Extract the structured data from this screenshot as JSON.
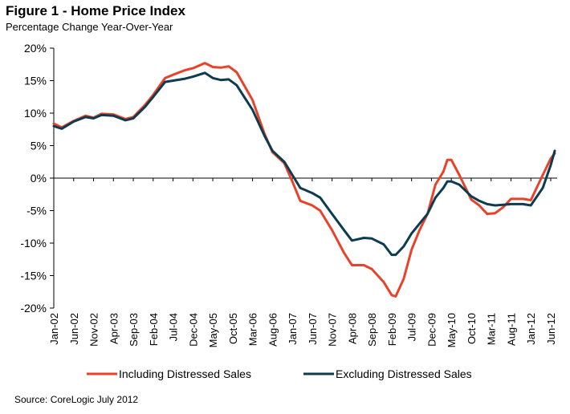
{
  "chart_data": {
    "type": "line",
    "title": "Figure 1 - Home Price Index",
    "subtitle": "Percentage Change Year-Over-Year",
    "source": "Source: CoreLogic July 2012",
    "xlabel": "",
    "ylabel": "",
    "ylim": [
      -20,
      20
    ],
    "yticks": [
      "20%",
      "15%",
      "10%",
      "5%",
      "0%",
      "-5%",
      "-10%",
      "-15%",
      "-20%"
    ],
    "ytick_values": [
      20,
      15,
      10,
      5,
      0,
      -5,
      -10,
      -15,
      -20
    ],
    "xtick_labels": [
      "Jan-02",
      "Jun-02",
      "Nov-02",
      "Apr-03",
      "Sep-03",
      "Feb-04",
      "Jul-04",
      "Dec-04",
      "May-05",
      "Oct-05",
      "Mar-06",
      "Aug-06",
      "Jan-07",
      "Jun-07",
      "Nov-07",
      "Apr-08",
      "Sep-08",
      "Feb-09",
      "Jul-09",
      "Dec-09",
      "May-10",
      "Oct-10",
      "Mar-11",
      "Aug-11",
      "Jan-12",
      "Jun-12"
    ],
    "x_start": "Jan-02",
    "x_end": "Jun-12",
    "legend_position": "bottom",
    "grid": false,
    "series": [
      {
        "name": "Including Distressed Sales",
        "color": "#e8432a",
        "points": [
          [
            "Jan-02",
            8.4
          ],
          [
            "Mar-02",
            7.8
          ],
          [
            "Jun-02",
            8.8
          ],
          [
            "Sep-02",
            9.6
          ],
          [
            "Nov-02",
            9.3
          ],
          [
            "Jan-03",
            9.9
          ],
          [
            "Apr-03",
            9.8
          ],
          [
            "Jul-03",
            9.1
          ],
          [
            "Sep-03",
            9.4
          ],
          [
            "Dec-03",
            11.3
          ],
          [
            "Feb-04",
            12.8
          ],
          [
            "May-04",
            15.4
          ],
          [
            "Jul-04",
            15.9
          ],
          [
            "Oct-04",
            16.6
          ],
          [
            "Dec-04",
            16.9
          ],
          [
            "Mar-05",
            17.7
          ],
          [
            "May-05",
            17.1
          ],
          [
            "Jul-05",
            17.0
          ],
          [
            "Sep-05",
            17.2
          ],
          [
            "Nov-05",
            16.3
          ],
          [
            "Mar-06",
            12.0
          ],
          [
            "Jun-06",
            6.8
          ],
          [
            "Aug-06",
            4.0
          ],
          [
            "Nov-06",
            2.3
          ],
          [
            "Jan-07",
            -0.5
          ],
          [
            "Mar-07",
            -3.5
          ],
          [
            "Jun-07",
            -4.2
          ],
          [
            "Aug-07",
            -5.0
          ],
          [
            "Nov-07",
            -8.0
          ],
          [
            "Feb-08",
            -11.5
          ],
          [
            "Apr-08",
            -13.4
          ],
          [
            "Jul-08",
            -13.4
          ],
          [
            "Sep-08",
            -14.0
          ],
          [
            "Dec-08",
            -16.0
          ],
          [
            "Feb-09",
            -18.0
          ],
          [
            "Mar-09",
            -18.2
          ],
          [
            "May-09",
            -15.5
          ],
          [
            "Jul-09",
            -11.0
          ],
          [
            "Sep-09",
            -8.0
          ],
          [
            "Nov-09",
            -5.5
          ],
          [
            "Jan-10",
            -1.0
          ],
          [
            "Mar-10",
            1.0
          ],
          [
            "Apr-10",
            2.8
          ],
          [
            "May-10",
            2.8
          ],
          [
            "Jul-10",
            0.5
          ],
          [
            "Oct-10",
            -3.3
          ],
          [
            "Dec-10",
            -4.2
          ],
          [
            "Feb-11",
            -5.5
          ],
          [
            "Apr-11",
            -5.4
          ],
          [
            "Jun-11",
            -4.5
          ],
          [
            "Aug-11",
            -3.2
          ],
          [
            "Nov-11",
            -3.2
          ],
          [
            "Jan-12",
            -3.4
          ],
          [
            "Apr-12",
            0.5
          ],
          [
            "Jun-12",
            3.0
          ],
          [
            "Jul-12",
            3.8
          ]
        ]
      },
      {
        "name": "Excluding Distressed Sales",
        "color": "#0d3b4f",
        "points": [
          [
            "Jan-02",
            8.0
          ],
          [
            "Mar-02",
            7.6
          ],
          [
            "Jun-02",
            8.7
          ],
          [
            "Sep-02",
            9.4
          ],
          [
            "Nov-02",
            9.2
          ],
          [
            "Jan-03",
            9.7
          ],
          [
            "Apr-03",
            9.6
          ],
          [
            "Jul-03",
            8.9
          ],
          [
            "Sep-03",
            9.2
          ],
          [
            "Dec-03",
            11.0
          ],
          [
            "Feb-04",
            12.5
          ],
          [
            "May-04",
            14.8
          ],
          [
            "Jul-04",
            15.0
          ],
          [
            "Oct-04",
            15.3
          ],
          [
            "Dec-04",
            15.6
          ],
          [
            "Mar-05",
            16.2
          ],
          [
            "May-05",
            15.4
          ],
          [
            "Jul-05",
            15.1
          ],
          [
            "Sep-05",
            15.2
          ],
          [
            "Nov-05",
            14.3
          ],
          [
            "Mar-06",
            10.5
          ],
          [
            "Jun-06",
            6.5
          ],
          [
            "Aug-06",
            4.2
          ],
          [
            "Nov-06",
            2.5
          ],
          [
            "Jan-07",
            0.5
          ],
          [
            "Mar-07",
            -1.5
          ],
          [
            "Jun-07",
            -2.3
          ],
          [
            "Aug-07",
            -3.0
          ],
          [
            "Nov-07",
            -5.5
          ],
          [
            "Feb-08",
            -8.0
          ],
          [
            "Apr-08",
            -9.6
          ],
          [
            "Jul-08",
            -9.2
          ],
          [
            "Sep-08",
            -9.3
          ],
          [
            "Dec-08",
            -10.2
          ],
          [
            "Feb-09",
            -11.8
          ],
          [
            "Mar-09",
            -11.8
          ],
          [
            "May-09",
            -10.5
          ],
          [
            "Jul-09",
            -8.5
          ],
          [
            "Sep-09",
            -7.0
          ],
          [
            "Nov-09",
            -5.5
          ],
          [
            "Jan-10",
            -3.0
          ],
          [
            "Mar-10",
            -1.5
          ],
          [
            "Apr-10",
            -0.5
          ],
          [
            "May-10",
            -0.5
          ],
          [
            "Jul-10",
            -1.0
          ],
          [
            "Oct-10",
            -2.8
          ],
          [
            "Dec-10",
            -3.5
          ],
          [
            "Feb-11",
            -4.0
          ],
          [
            "Apr-11",
            -4.2
          ],
          [
            "Jun-11",
            -4.1
          ],
          [
            "Aug-11",
            -4.0
          ],
          [
            "Nov-11",
            -4.0
          ],
          [
            "Jan-12",
            -4.2
          ],
          [
            "Apr-12",
            -1.5
          ],
          [
            "Jun-12",
            2.0
          ],
          [
            "Jul-12",
            4.2
          ]
        ]
      }
    ]
  }
}
